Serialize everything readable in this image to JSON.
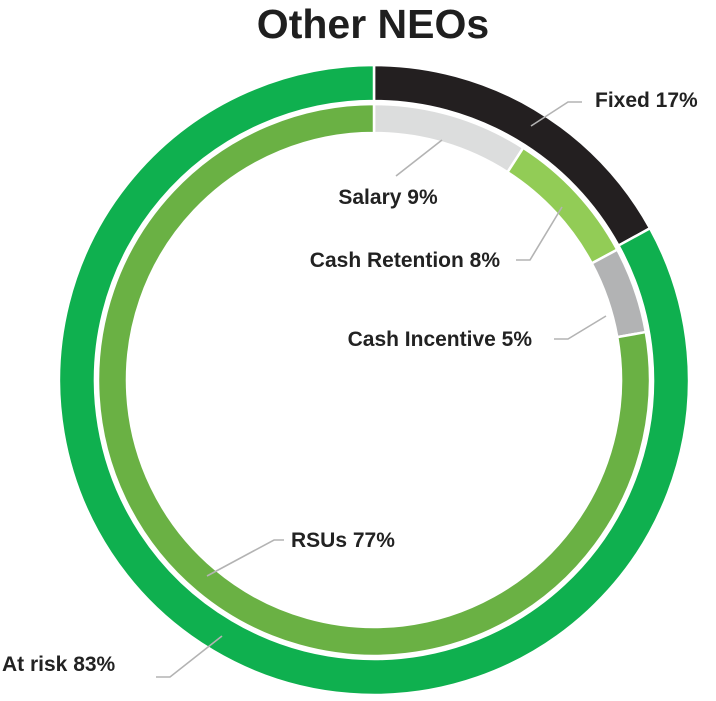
{
  "chart_data": {
    "type": "pie",
    "title": "Other NEOs",
    "rings": [
      {
        "name": "outer",
        "slices": [
          {
            "label": "Fixed 17%",
            "value": 17,
            "color": "#231f20"
          },
          {
            "label": "At risk 83%",
            "value": 83,
            "color": "#0fb04f"
          }
        ]
      },
      {
        "name": "inner",
        "slices": [
          {
            "label": "Salary 9%",
            "value": 9,
            "color": "#dcdddd"
          },
          {
            "label": "Cash Retention 8%",
            "value": 8,
            "color": "#92cc56"
          },
          {
            "label": "Cash Incentive 5%",
            "value": 5,
            "color": "#b2b3b4"
          },
          {
            "label": "RSUs 77%",
            "value": 77,
            "color": "#6ab144"
          }
        ]
      }
    ]
  }
}
